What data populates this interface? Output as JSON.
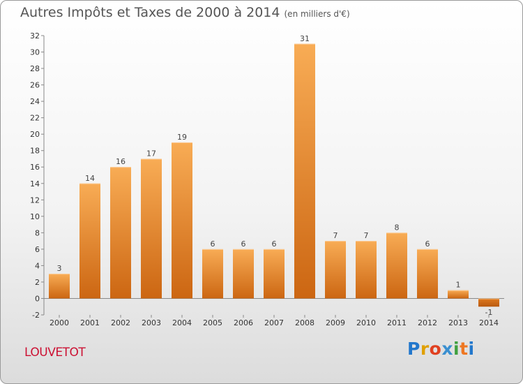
{
  "title": "Autres Impôts et Taxes de 2000 à 2014",
  "subtitle": "(en milliers d'€)",
  "commune": "LOUVETOT",
  "logo": {
    "letters": [
      "P",
      "r",
      "o",
      "x",
      "i",
      "t",
      "i"
    ],
    "colors": [
      "#2277cc",
      "#e0a000",
      "#e04020",
      "#3a8fd0",
      "#40a040",
      "#ee7722",
      "#2277cc"
    ]
  },
  "chart_data": {
    "type": "bar",
    "categories": [
      "2000",
      "2001",
      "2002",
      "2003",
      "2004",
      "2005",
      "2006",
      "2007",
      "2008",
      "2009",
      "2010",
      "2011",
      "2012",
      "2013",
      "2014"
    ],
    "values": [
      3,
      14,
      16,
      17,
      19,
      6,
      6,
      6,
      31,
      7,
      7,
      8,
      6,
      1,
      -1
    ],
    "ylim": [
      -2,
      32
    ],
    "yticks": [
      -2,
      0,
      2,
      4,
      6,
      8,
      10,
      12,
      14,
      16,
      18,
      20,
      22,
      24,
      26,
      28,
      30,
      32
    ],
    "grid": false,
    "bar_color": "#f0a048"
  }
}
